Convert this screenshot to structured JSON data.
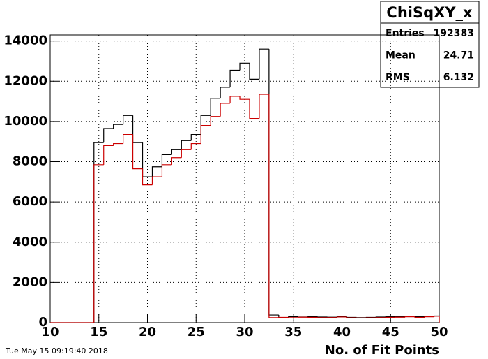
{
  "chart_data": {
    "type": "histogram",
    "xlabel": "No. of Fit Points",
    "timestamp": "Tue May 15 09:19:40 2018",
    "bins": [
      10,
      10.5,
      11.5,
      12.5,
      13.5,
      14.5,
      15.5,
      16.5,
      17.5,
      18.5,
      19.5,
      20.5,
      21.5,
      22.5,
      23.5,
      24.5,
      25.5,
      26.5,
      27.5,
      28.5,
      29.5,
      30.5,
      31.5,
      32.5,
      33.5,
      34.5,
      35.5,
      36.5,
      37.5,
      38.5,
      39.5,
      40.5,
      41.5,
      42.5,
      43.5,
      44.5,
      45.5,
      46.5,
      47.5,
      48.5,
      49.5,
      50
    ],
    "series": [
      {
        "color": "#000000",
        "values": [
          0,
          0,
          0,
          0,
          0,
          8950,
          9650,
          9850,
          10300,
          8950,
          7250,
          7750,
          8350,
          8600,
          9050,
          9350,
          10300,
          11150,
          11700,
          12550,
          12900,
          12100,
          13600,
          380,
          250,
          300,
          280,
          290,
          280,
          270,
          300,
          260,
          250,
          260,
          280,
          290,
          300,
          320,
          300,
          320,
          330
        ]
      },
      {
        "color": "#cc0000",
        "values": [
          0,
          0,
          0,
          0,
          0,
          7850,
          8800,
          8900,
          9350,
          7650,
          6850,
          7250,
          7850,
          8200,
          8600,
          8900,
          9800,
          10250,
          10900,
          11250,
          11100,
          10150,
          11350,
          250,
          260,
          250,
          270,
          260,
          250,
          250,
          280,
          240,
          230,
          240,
          250,
          260,
          270,
          290,
          260,
          290,
          320
        ]
      }
    ],
    "xlim": [
      10,
      50
    ],
    "xticks": [
      10,
      15,
      20,
      25,
      30,
      35,
      40,
      45,
      50
    ],
    "ylim": [
      0,
      14300
    ],
    "yticks": [
      0,
      2000,
      4000,
      6000,
      8000,
      10000,
      12000,
      14000
    ],
    "grid": true,
    "stats": {
      "title": "ChiSqXY_x",
      "rows": [
        {
          "label": "Entries",
          "value": 192383
        },
        {
          "label": "Mean",
          "value": 24.71
        },
        {
          "label": "RMS",
          "value": 6.132
        }
      ]
    }
  }
}
